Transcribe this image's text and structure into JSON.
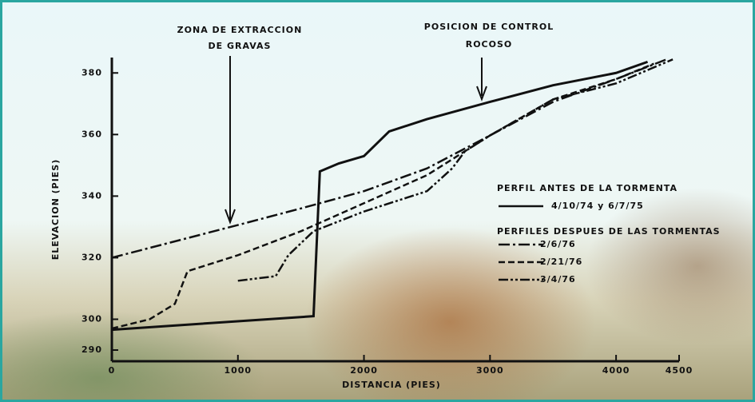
{
  "chart_data": {
    "type": "line",
    "annotations": [
      "ZONA DE EXTRACCION",
      "DE GRAVAS",
      "POSICION DE CONTROL",
      "ROCOSO"
    ],
    "xlabel": "DISTANCIA (PIES)",
    "ylabel": "ELEVACION (PIES)",
    "legend_titles": [
      "PERFIL ANTES DE LA TORMENTA",
      "PERFILES DESPUES DE LAS TORMENTAS"
    ],
    "xlim": [
      0,
      4500
    ],
    "xticks": [
      0,
      1000,
      2000,
      3000,
      4000,
      4500
    ],
    "ylim": [
      290,
      385
    ],
    "yticks": [
      290,
      300,
      320,
      340,
      360,
      380
    ],
    "series": [
      {
        "name": "4/10/74 y 6/7/75",
        "color": "#111111",
        "style": "solid",
        "x": [
          0,
          1600,
          1650,
          1800,
          2000,
          2200,
          2500,
          3000,
          3500,
          4000,
          4250
        ],
        "values": [
          296.6,
          301,
          348,
          350.6,
          353,
          361,
          365,
          370.6,
          376,
          380,
          383.6
        ]
      },
      {
        "name": "2/6/76",
        "color": "#111111",
        "style": "dashdot",
        "x": [
          0,
          1000,
          1500,
          2000,
          2500,
          3000,
          3500,
          4000,
          4400
        ],
        "values": [
          320,
          330.6,
          336,
          341.6,
          349,
          359.7,
          370.6,
          378,
          384.4
        ]
      },
      {
        "name": "2/21/76",
        "color": "#111111",
        "style": "dashed",
        "x": [
          0,
          300,
          500,
          600,
          1000,
          1500,
          2000,
          2500,
          3000,
          3500,
          4000,
          4300
        ],
        "values": [
          297,
          300,
          305,
          315.6,
          320.8,
          328.6,
          337.7,
          346.8,
          359.7,
          371.4,
          378,
          383
        ]
      },
      {
        "name": "3/4/76",
        "color": "#111111",
        "style": "dashdotdot",
        "x": [
          1000,
          1300,
          1400,
          1600,
          2000,
          2500,
          2700,
          2800,
          3000,
          3500,
          4000,
          4450
        ],
        "values": [
          312.5,
          314,
          320.8,
          328.6,
          335,
          341.6,
          349,
          354.5,
          359.7,
          371.4,
          376.6,
          384.4
        ]
      }
    ]
  }
}
